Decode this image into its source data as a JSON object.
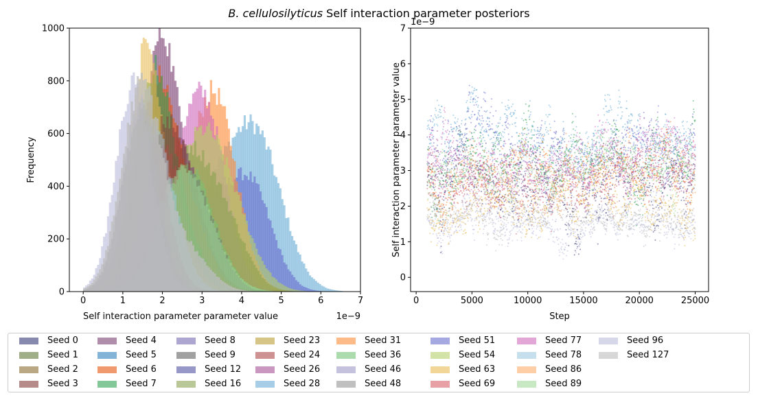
{
  "figure": {
    "title_italic": "B. cellulosilyticus",
    "title_rest": " Self interaction parameter posteriors"
  },
  "chart_data": [
    {
      "type": "bar",
      "subtype": "overlaid-histogram",
      "title": "",
      "xlabel": "Self interaction parameter parameter value",
      "ylabel": "Frequency",
      "x_offset_label": "1e−9",
      "xlim": [
        -0.35,
        7.0
      ],
      "ylim": [
        0,
        1000
      ],
      "xticks": [
        0,
        1,
        2,
        3,
        4,
        5,
        6,
        7
      ],
      "yticks": [
        0,
        200,
        400,
        600,
        800,
        1000
      ],
      "series_profiles": [
        {
          "seed": "Seed 28",
          "color": "#6baed6",
          "alpha": 0.6,
          "mixture": [
            [
              4.35,
              0.65,
              560
            ],
            [
              3.1,
              0.7,
              330
            ]
          ]
        },
        {
          "seed": "Seed 51",
          "color": "#6b6ecf",
          "alpha": 0.6,
          "mixture": [
            [
              4.2,
              0.55,
              380
            ],
            [
              3.0,
              0.65,
              300
            ]
          ]
        },
        {
          "seed": "Seed 31",
          "color": "#fd8d3c",
          "alpha": 0.6,
          "mixture": [
            [
              3.3,
              0.55,
              720
            ],
            [
              2.2,
              0.6,
              200
            ]
          ]
        },
        {
          "seed": "Seed 77",
          "color": "#ce6dbd",
          "alpha": 0.6,
          "mixture": [
            [
              3.0,
              0.55,
              720
            ],
            [
              2.0,
              0.5,
              250
            ]
          ]
        },
        {
          "seed": "Seed 54",
          "color": "#b5cf6b",
          "alpha": 0.6,
          "mixture": [
            [
              2.9,
              0.7,
              560
            ],
            [
              3.8,
              0.6,
              150
            ]
          ]
        },
        {
          "seed": "Seed 16",
          "color": "#8ca252",
          "alpha": 0.6,
          "mixture": [
            [
              2.6,
              0.75,
              540
            ],
            [
              3.7,
              0.5,
              120
            ]
          ]
        },
        {
          "seed": "Seed 4",
          "color": "#7b4173",
          "alpha": 0.6,
          "mixture": [
            [
              1.9,
              0.4,
              880
            ],
            [
              2.8,
              0.55,
              380
            ]
          ]
        },
        {
          "seed": "Seed 6",
          "color": "#e6550d",
          "alpha": 0.55,
          "mixture": [
            [
              1.8,
              0.45,
              720
            ],
            [
              2.6,
              0.5,
              300
            ]
          ]
        },
        {
          "seed": "Seed 7",
          "color": "#31a354",
          "alpha": 0.55,
          "mixture": [
            [
              1.75,
              0.45,
              780
            ],
            [
              2.5,
              0.5,
              200
            ]
          ]
        },
        {
          "seed": "Seed 63",
          "color": "#e7ba52",
          "alpha": 0.55,
          "mixture": [
            [
              1.55,
              0.4,
              880
            ],
            [
              2.3,
              0.5,
              180
            ]
          ]
        },
        {
          "seed": "Seed 23",
          "color": "#bd9e39",
          "alpha": 0.5,
          "mixture": [
            [
              1.6,
              0.45,
              700
            ]
          ]
        },
        {
          "seed": "Seed 3",
          "color": "#843c39",
          "alpha": 0.5,
          "mixture": [
            [
              2.3,
              0.6,
              560
            ],
            [
              1.7,
              0.4,
              200
            ]
          ]
        },
        {
          "seed": "Seed 24",
          "color": "#ad494a",
          "alpha": 0.5,
          "mixture": [
            [
              2.0,
              0.5,
              540
            ]
          ]
        },
        {
          "seed": "Seed 36",
          "color": "#74c476",
          "alpha": 0.5,
          "mixture": [
            [
              2.6,
              0.65,
              480
            ]
          ]
        },
        {
          "seed": "Seed 89",
          "color": "#a1d99b",
          "alpha": 0.5,
          "mixture": [
            [
              2.5,
              0.7,
              460
            ]
          ]
        },
        {
          "seed": "Seed 78",
          "color": "#9ecae1",
          "alpha": 0.5,
          "mixture": [
            [
              1.7,
              0.55,
              640
            ]
          ]
        },
        {
          "seed": "Seed 46",
          "color": "#9e9ac8",
          "alpha": 0.5,
          "mixture": [
            [
              1.4,
              0.45,
              700
            ]
          ]
        },
        {
          "seed": "Seed 96",
          "color": "#bcbddc",
          "alpha": 0.6,
          "mixture": [
            [
              1.25,
              0.45,
              790
            ]
          ]
        },
        {
          "seed": "Seed 48",
          "color": "#969696",
          "alpha": 0.5,
          "mixture": [
            [
              1.5,
              0.5,
              720
            ]
          ]
        },
        {
          "seed": "Seed 127",
          "color": "#bdbdbd",
          "alpha": 0.75,
          "mixture": [
            [
              1.45,
              0.5,
              780
            ],
            [
              2.6,
              0.55,
              150
            ]
          ]
        }
      ]
    },
    {
      "type": "scatter",
      "subtype": "trace-plot",
      "title": "",
      "xlabel": "Step",
      "ylabel": "Self interaction parameter parameter value",
      "y_offset_label": "1e−9",
      "xlim": [
        -500,
        26200
      ],
      "ylim": [
        -0.4,
        7.0
      ],
      "xticks": [
        0,
        5000,
        10000,
        15000,
        20000,
        25000
      ],
      "yticks": [
        0,
        1,
        2,
        3,
        4,
        5,
        6,
        7
      ],
      "step_range": [
        1000,
        25000
      ],
      "series_profiles": [
        {
          "seed": "Seed 0",
          "color": "#393b79",
          "mean": 2.5,
          "spread": 1.1
        },
        {
          "seed": "Seed 12",
          "color": "#6b6ecf",
          "mean": 3.6,
          "spread": 1.0
        },
        {
          "seed": "Seed 28",
          "color": "#6baed6",
          "mean": 3.9,
          "spread": 0.9
        },
        {
          "seed": "Seed 7",
          "color": "#31a354",
          "mean": 3.2,
          "spread": 1.1
        },
        {
          "seed": "Seed 24",
          "color": "#d6616b",
          "mean": 2.6,
          "spread": 1.0
        },
        {
          "seed": "Seed 26",
          "color": "#a55194",
          "mean": 3.0,
          "spread": 1.0
        },
        {
          "seed": "Seed 77",
          "color": "#ce6dbd",
          "mean": 3.3,
          "spread": 0.9
        },
        {
          "seed": "Seed 31",
          "color": "#fd8d3c",
          "mean": 2.9,
          "spread": 0.9
        },
        {
          "seed": "Seed 89",
          "color": "#a1d99b",
          "mean": 3.0,
          "spread": 0.8
        },
        {
          "seed": "Seed 63",
          "color": "#e7ba52",
          "mean": 1.9,
          "spread": 0.8
        },
        {
          "seed": "Seed 96",
          "color": "#bcbddc",
          "mean": 1.5,
          "spread": 0.6
        },
        {
          "seed": "Seed 127",
          "color": "#bdbdbd",
          "mean": 1.7,
          "spread": 0.6
        }
      ]
    }
  ],
  "legend": {
    "items": [
      {
        "label": "Seed 0",
        "color": "#393b79"
      },
      {
        "label": "Seed 1",
        "color": "#637939"
      },
      {
        "label": "Seed 2",
        "color": "#8c6d31"
      },
      {
        "label": "Seed 3",
        "color": "#843c39"
      },
      {
        "label": "Seed 4",
        "color": "#7b4173"
      },
      {
        "label": "Seed 5",
        "color": "#3182bd"
      },
      {
        "label": "Seed 6",
        "color": "#e6550d"
      },
      {
        "label": "Seed 7",
        "color": "#31a354"
      },
      {
        "label": "Seed 8",
        "color": "#756bb1"
      },
      {
        "label": "Seed 9",
        "color": "#636363"
      },
      {
        "label": "Seed 12",
        "color": "#5254a3"
      },
      {
        "label": "Seed 16",
        "color": "#8ca252"
      },
      {
        "label": "Seed 23",
        "color": "#bd9e39"
      },
      {
        "label": "Seed 24",
        "color": "#ad494a"
      },
      {
        "label": "Seed 26",
        "color": "#a55194"
      },
      {
        "label": "Seed 28",
        "color": "#6baed6"
      },
      {
        "label": "Seed 31",
        "color": "#fd8d3c"
      },
      {
        "label": "Seed 36",
        "color": "#74c476"
      },
      {
        "label": "Seed 46",
        "color": "#9e9ac8"
      },
      {
        "label": "Seed 48",
        "color": "#969696"
      },
      {
        "label": "Seed 51",
        "color": "#6b6ecf"
      },
      {
        "label": "Seed 54",
        "color": "#b5cf6b"
      },
      {
        "label": "Seed 63",
        "color": "#e7ba52"
      },
      {
        "label": "Seed 69",
        "color": "#d6616b"
      },
      {
        "label": "Seed 77",
        "color": "#ce6dbd"
      },
      {
        "label": "Seed 78",
        "color": "#9ecae1"
      },
      {
        "label": "Seed 86",
        "color": "#fdae6b"
      },
      {
        "label": "Seed 89",
        "color": "#a1d99b"
      },
      {
        "label": "Seed 96",
        "color": "#bcbddc"
      },
      {
        "label": "Seed 127",
        "color": "#bdbdbd"
      }
    ]
  }
}
